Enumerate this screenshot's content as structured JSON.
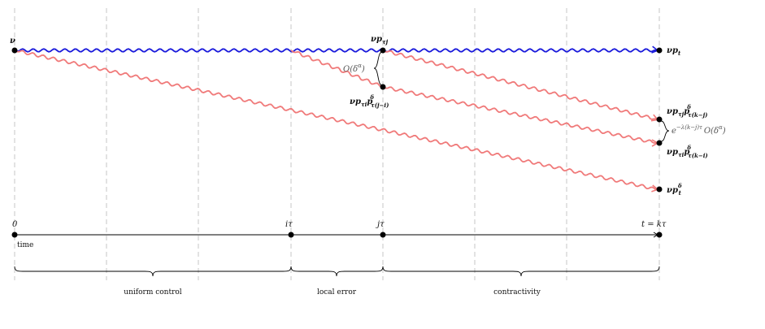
{
  "node_labels": {
    "nu_start": "ν",
    "nu_p_tau_j": "νp",
    "nu_p_tau_j_sub": "τj",
    "nu_p_t": "νp",
    "nu_p_t_sub": "t",
    "nu_p_tau_i_mid": "νp",
    "nu_p_tau_i_mid_sub1": "τi",
    "nu_p_tau_i_mid_p": "p",
    "nu_p_tau_i_mid_sup": "δ",
    "nu_p_tau_i_mid_sub2": "τ(j−i)",
    "top_right": "νp",
    "top_right_sub1": "τj",
    "top_right_p": "p",
    "top_right_sup": "δ",
    "top_right_sub2": "τ(k−j)",
    "bottom_right": "νp",
    "bottom_right_sub1": "τi",
    "bottom_right_p": "p",
    "bottom_right_sup": "δ",
    "bottom_right_sub2": "τ(k−i)",
    "nu_p_delta_t": "νp",
    "nu_p_delta_t_sup": "δ",
    "nu_p_delta_t_sub": "t"
  },
  "annotations": {
    "local_bound": "O(δ",
    "local_bound_sup": "α",
    "local_bound_close": ")",
    "contract_prefix": "e",
    "contract_exp": "−λ(k−j)τ",
    "contract_bound": "O(δ",
    "contract_bound_sup": "α",
    "contract_close": ")"
  },
  "time_axis": {
    "label": "time",
    "tick_0": "0",
    "tick_i": "iτ",
    "tick_j": "jτ",
    "tick_end": "t = kτ"
  },
  "phases": {
    "uniform_control": "uniform control",
    "local_error": "local error",
    "contractivity": "contractivity"
  },
  "colors": {
    "exact_path": "#1a1adb",
    "approx_path": "#f07a7a",
    "grid": "#b9b9b9",
    "node": "#000000"
  }
}
